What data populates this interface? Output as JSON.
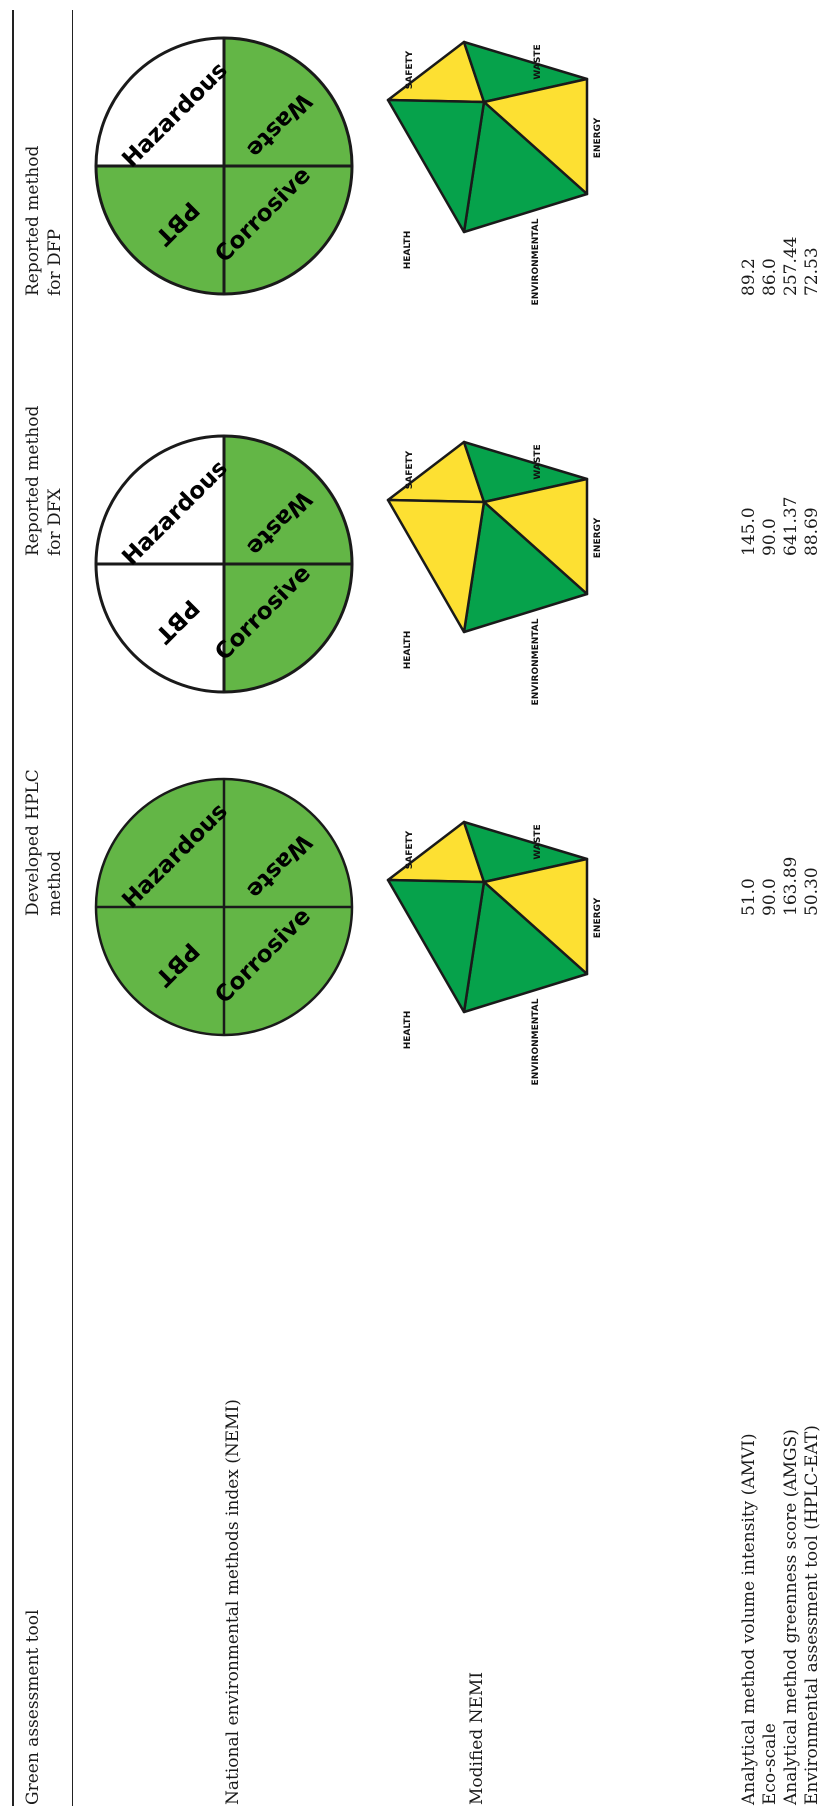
{
  "table": {
    "header": {
      "tool": "Green assessment tool",
      "developed": [
        "Developed HPLC",
        "method"
      ],
      "dfx": [
        "Reported method",
        "for DFX"
      ],
      "dfp": [
        "Reported method",
        "for DFP"
      ]
    },
    "rows": {
      "nemi": "National environmental methods index (NEMI)",
      "modified_nemi": "Modified NEMI"
    },
    "metrics": [
      {
        "label": "Analytical method volume intensity (AMVI)",
        "developed": "51.0",
        "dfx": "145.0",
        "dfp": "89.2"
      },
      {
        "label": "Eco-scale",
        "developed": "90.0",
        "dfx": "90.0",
        "dfp": "86.0"
      },
      {
        "label": "Analytical method greenness score (AMGS)",
        "developed": "163.89",
        "dfx": "641.37",
        "dfp": "257.44"
      },
      {
        "label": "Environmental assessment tool (HPLC-EAT)",
        "developed": "50.30",
        "dfx": "88.69",
        "dfp": "72.53"
      }
    ]
  },
  "nemi_labels": {
    "hazardous": "Hazardous",
    "waste": "Waste",
    "pbt": "PBT",
    "corrosive": "Corrosive"
  },
  "pent_labels": {
    "safety": "SAFETY",
    "waste": "WASTE",
    "energy": "ENERGY",
    "environmental": "ENVIRONMENTAL",
    "health": "HEALTH"
  },
  "colors": {
    "green_light": "#63b646",
    "green_dark": "#06a24b",
    "yellow": "#fde032",
    "white": "#ffffff"
  }
}
